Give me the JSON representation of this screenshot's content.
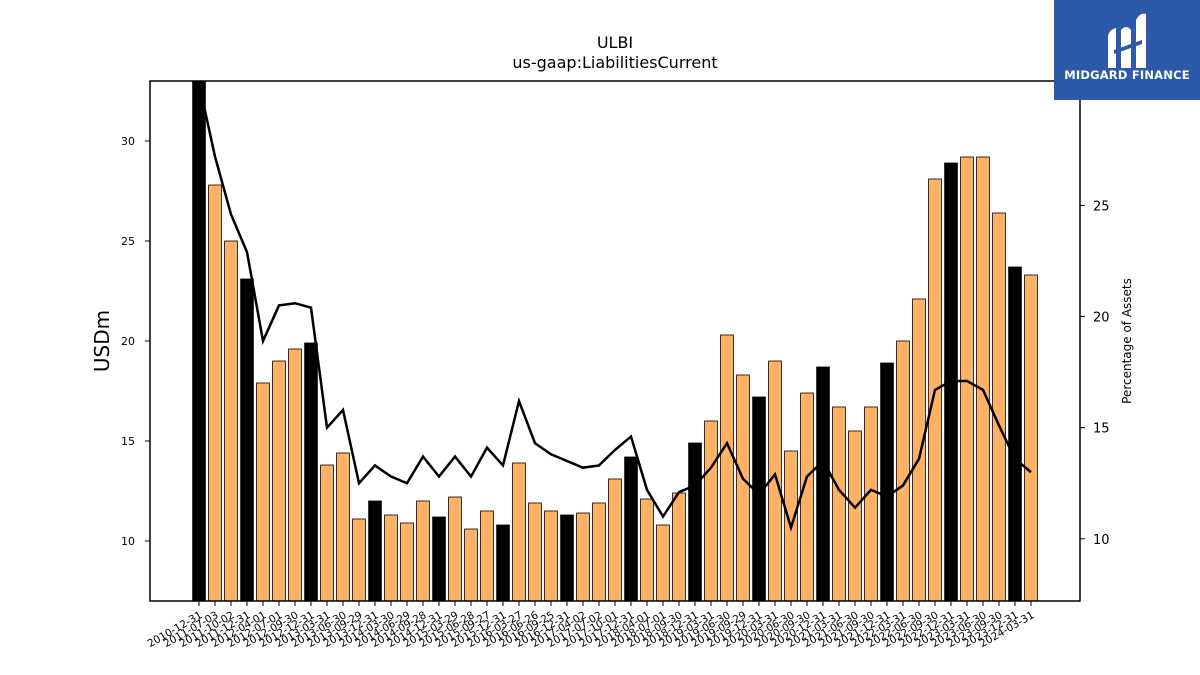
{
  "chart_data": {
    "type": "bar",
    "title": "ULBI",
    "subtitle": "us-gaap:LiabilitiesCurrent",
    "ylabel": "USDm",
    "ylabel_right": "Percentage of Assets",
    "ylim": [
      7,
      33
    ],
    "ylim_right": [
      7.2,
      30.6
    ],
    "yticks": [
      10,
      15,
      20,
      25,
      30
    ],
    "yticks_right": [
      10,
      15,
      20,
      25
    ],
    "colors": {
      "annual": "#000000",
      "quarterly": "#ffb266",
      "line": "#000000",
      "bar_edge": "#000000"
    },
    "categories": [
      "2010-12-31",
      "2011-07-03",
      "2011-10-02",
      "2011-12-31",
      "2012-04-01",
      "2012-07-01",
      "2012-09-30",
      "2012-12-31",
      "2013-03-31",
      "2013-06-30",
      "2013-09-29",
      "2013-12-31",
      "2014-03-30",
      "2014-06-29",
      "2014-09-28",
      "2014-12-31",
      "2015-03-29",
      "2015-06-28",
      "2015-09-27",
      "2015-12-31",
      "2016-03-27",
      "2016-06-26",
      "2016-09-25",
      "2016-12-31",
      "2017-04-02",
      "2017-07-02",
      "2017-10-01",
      "2017-12-31",
      "2018-04-01",
      "2018-07-01",
      "2018-09-30",
      "2018-12-31",
      "2019-03-31",
      "2019-06-30",
      "2019-09-29",
      "2019-12-31",
      "2020-03-31",
      "2020-06-30",
      "2020-09-30",
      "2020-12-31",
      "2021-03-31",
      "2021-06-30",
      "2021-09-30",
      "2021-12-31",
      "2022-03-31",
      "2022-06-30",
      "2022-09-30",
      "2022-12-31",
      "2023-03-31",
      "2023-06-30",
      "2023-09-30",
      "2023-12-31",
      "2024-03-31"
    ],
    "series": [
      {
        "values": [
          33.0,
          27.8,
          25.0,
          23.1,
          17.9,
          19.0,
          19.6,
          19.9,
          13.8,
          14.4,
          11.1,
          12.0,
          11.3,
          10.9,
          12.0,
          11.2,
          12.2,
          10.6,
          11.5,
          10.8,
          13.9,
          11.9,
          11.5,
          11.3,
          11.4,
          11.9,
          13.1,
          14.2,
          12.1,
          10.8,
          12.4,
          14.9,
          16.0,
          20.3,
          18.3,
          17.2,
          19.0,
          14.5,
          17.4,
          18.7,
          16.7,
          15.5,
          16.7,
          18.9,
          20.0,
          22.1,
          28.1,
          28.9,
          29.2,
          29.2,
          26.4,
          23.7,
          23.3
        ],
        "annual_flags": [
          1,
          0,
          0,
          1,
          0,
          0,
          0,
          1,
          0,
          0,
          0,
          1,
          0,
          0,
          0,
          1,
          0,
          0,
          0,
          1,
          0,
          0,
          0,
          1,
          0,
          0,
          0,
          1,
          0,
          0,
          0,
          1,
          0,
          0,
          0,
          1,
          0,
          0,
          0,
          1,
          0,
          0,
          0,
          1,
          0,
          0,
          0,
          1,
          0,
          0,
          0,
          1,
          0
        ]
      },
      {
        "name": "Percentage of Assets",
        "values": [
          30.5,
          27.2,
          24.6,
          22.9,
          18.9,
          20.5,
          20.6,
          20.4,
          15.0,
          15.8,
          12.5,
          13.3,
          12.8,
          12.5,
          13.7,
          12.8,
          13.7,
          12.8,
          14.1,
          13.3,
          16.2,
          14.3,
          13.8,
          13.5,
          13.2,
          13.3,
          14.0,
          14.6,
          12.2,
          11.0,
          12.1,
          12.4,
          13.2,
          14.3,
          12.7,
          12.0,
          12.9,
          10.5,
          12.8,
          13.5,
          12.2,
          11.4,
          12.2,
          11.9,
          12.4,
          13.6,
          16.7,
          17.1,
          17.1,
          16.7,
          15.1,
          13.6,
          13.0
        ]
      }
    ]
  },
  "logo": {
    "text": "MIDGARD FINANCE"
  }
}
